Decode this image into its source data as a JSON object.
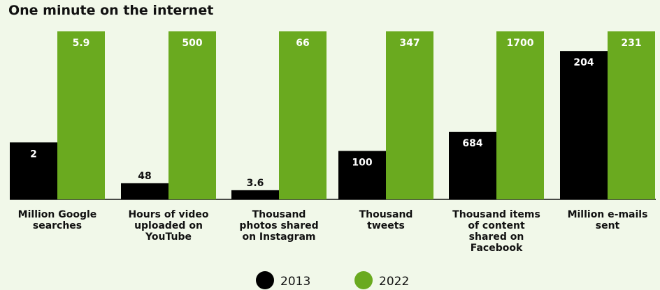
{
  "chart_data": {
    "type": "bar",
    "title": "One minute on the internet",
    "categories": [
      "Million Google searches",
      "Hours of video uploaded on YouTube",
      "Thousand photos shared on Instagram",
      "Thousand tweets",
      "Thousand items of content shared on Facebook",
      "Million e-mails sent"
    ],
    "category_label_lines": [
      [
        "Million Google",
        "searches"
      ],
      [
        "Hours of video",
        "uploaded on",
        "YouTube"
      ],
      [
        "Thousand",
        "photos shared",
        "on Instagram"
      ],
      [
        "Thousand",
        "tweets"
      ],
      [
        "Thousand items",
        "of content",
        "shared on",
        "Facebook"
      ],
      [
        "Million e-mails",
        "sent"
      ]
    ],
    "series": [
      {
        "name": "2013",
        "color": "#000000",
        "values": [
          2,
          48,
          3.6,
          100,
          684,
          204
        ],
        "labels": [
          "2",
          "48",
          "3.6",
          "100",
          "684",
          "204"
        ]
      },
      {
        "name": "2022",
        "color": "#6aaa1f",
        "values": [
          5.9,
          500,
          66,
          347,
          1700,
          231
        ],
        "labels": [
          "5.9",
          "500",
          "66",
          "347",
          "1700",
          "231"
        ]
      }
    ],
    "scale": "independent per category (each group normalized to its own maximum)",
    "grid": false,
    "legend": "bottom-center"
  }
}
